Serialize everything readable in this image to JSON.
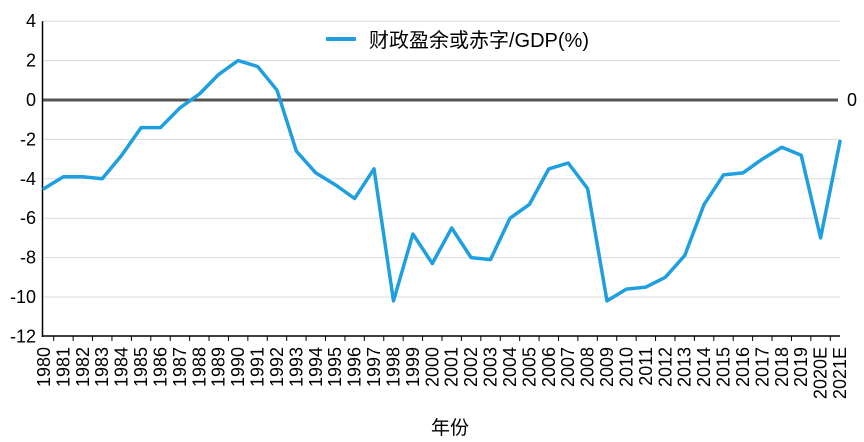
{
  "chart_data": {
    "type": "line",
    "title": "",
    "legend": [
      "财政盈余或赤字/GDP(%)"
    ],
    "legend_position": "top-center",
    "xlabel": "年份",
    "ylabel": "",
    "categories": [
      "1980",
      "1981",
      "1982",
      "1983",
      "1984",
      "1985",
      "1986",
      "1987",
      "1988",
      "1989",
      "1990",
      "1991",
      "1992",
      "1993",
      "1994",
      "1995",
      "1996",
      "1997",
      "1998",
      "1999",
      "2000",
      "2001",
      "2002",
      "2003",
      "2004",
      "2005",
      "2006",
      "2007",
      "2008",
      "2009",
      "2010",
      "2011",
      "2012",
      "2013",
      "2014",
      "2015",
      "2016",
      "2017",
      "2018",
      "2019",
      "2020E",
      "2021E"
    ],
    "series": [
      {
        "name": "财政盈余或赤字/GDP(%)",
        "values": [
          -4.5,
          -3.9,
          -3.9,
          -4.0,
          -2.8,
          -1.4,
          -1.4,
          -0.4,
          0.3,
          1.3,
          2.0,
          1.7,
          0.5,
          -2.6,
          -3.7,
          -4.3,
          -5.0,
          -3.5,
          -10.2,
          -6.8,
          -8.3,
          -6.5,
          -8.0,
          -8.1,
          -6.0,
          -5.3,
          -3.5,
          -3.2,
          -4.5,
          -10.2,
          -9.6,
          -9.5,
          -9.0,
          -7.9,
          -5.3,
          -3.8,
          -3.7,
          -3.0,
          -2.4,
          -2.8,
          -7.0,
          -2.1
        ]
      }
    ],
    "ylim": [
      -12,
      4
    ],
    "yticks": [
      4,
      2,
      0,
      -2,
      -4,
      -6,
      -8,
      -10,
      -12
    ],
    "right_axis_label": "0",
    "grid": true,
    "zero_line": true,
    "colors": {
      "series": "#1F9FE0",
      "zero_line": "#555555",
      "gridline": "#D9D9D9",
      "axis": "#000000",
      "text": "#000000",
      "background": "#FFFFFF"
    }
  }
}
